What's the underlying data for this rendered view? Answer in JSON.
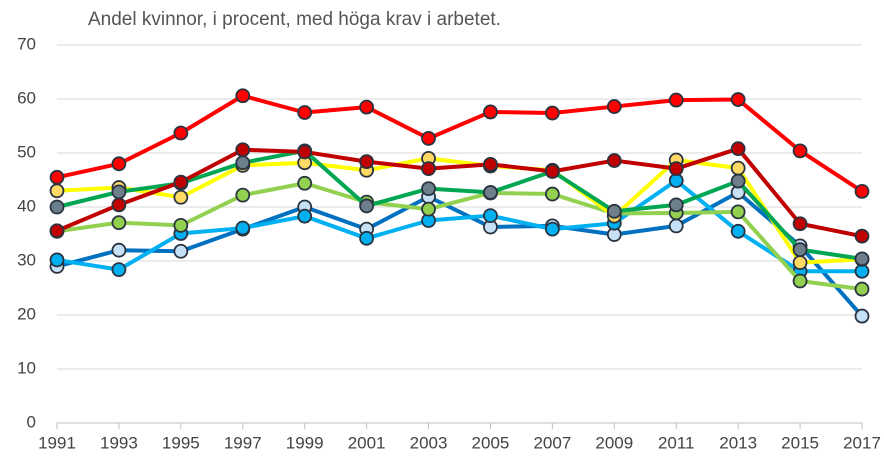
{
  "chart_data": {
    "type": "line",
    "title": "Andel kvinnor, i procent, med höga krav i arbetet.",
    "x": [
      1991,
      1993,
      1995,
      1997,
      1999,
      2001,
      2003,
      2005,
      2007,
      2009,
      2011,
      2013,
      2015,
      2017
    ],
    "xlim": [
      1991,
      2017
    ],
    "xticks": [
      1991,
      1993,
      1995,
      1997,
      1999,
      2001,
      2003,
      2005,
      2007,
      2009,
      2011,
      2013,
      2015,
      2017
    ],
    "ylim": [
      0,
      70
    ],
    "yticks": [
      0,
      10,
      20,
      30,
      40,
      50,
      60,
      70
    ],
    "grid": true,
    "marker_edge": "#2a3440",
    "series": [
      {
        "color": "#0070c0",
        "marker_color": "#c6e0f5",
        "values": [
          29,
          32,
          31.8,
          35.9,
          40,
          35.9,
          41.9,
          36.3,
          36.5,
          34.9,
          36.5,
          42.7,
          32.8,
          19.8
        ]
      },
      {
        "color": "#00b0f0",
        "marker_color": "#00b0f0",
        "values": [
          30.2,
          28.4,
          35.1,
          36.1,
          38.3,
          34.2,
          37.5,
          38.4,
          35.9,
          37,
          44.9,
          35.5,
          28.1,
          28.1
        ]
      },
      {
        "color": "#92d050",
        "marker_color": "#92d050",
        "values": [
          35.5,
          37.1,
          36.6,
          42.2,
          44.4,
          40.9,
          39.6,
          42.6,
          42.4,
          38.8,
          38.9,
          39.1,
          26.3,
          24.8
        ]
      },
      {
        "color": "#ffff00",
        "marker_color": "#ffd966",
        "values": [
          43,
          43.6,
          41.8,
          47.7,
          48.2,
          46.8,
          49,
          47.6,
          46.8,
          38.3,
          48.7,
          47.2,
          29.7,
          30.3
        ]
      },
      {
        "color": "#00a651",
        "marker_color": "#6d7f8b",
        "values": [
          40,
          42.8,
          44.4,
          48.2,
          50.4,
          40.2,
          43.4,
          42.7,
          46.6,
          39.2,
          40.4,
          44.8,
          32.1,
          30.4
        ]
      },
      {
        "color": "#c00000",
        "marker_color": "#c00000",
        "values": [
          35.6,
          40.4,
          44.6,
          50.6,
          50.2,
          48.4,
          47.1,
          47.9,
          46.6,
          48.6,
          47.1,
          50.8,
          36.9,
          34.6
        ]
      },
      {
        "color": "#ff0000",
        "marker_color": "#ff0000",
        "values": [
          45.5,
          48,
          53.7,
          60.6,
          57.5,
          58.5,
          52.7,
          57.6,
          57.4,
          58.6,
          59.8,
          59.9,
          50.4,
          42.9
        ]
      }
    ]
  }
}
